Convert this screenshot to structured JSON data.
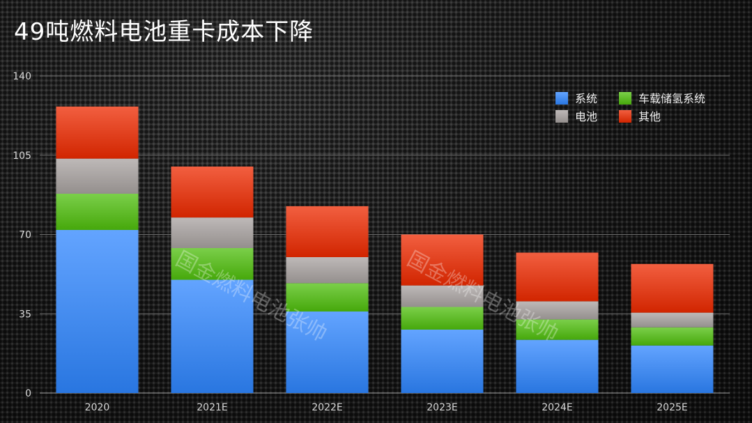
{
  "title": "49吨燃料电池重卡成本下降",
  "watermark": "国金燃料电池张帅",
  "chart_data": {
    "type": "bar",
    "stacked": true,
    "categories": [
      "2020",
      "2021E",
      "2022E",
      "2023E",
      "2024E",
      "2025E"
    ],
    "series": [
      {
        "name": "系统",
        "color": "#2f86ff",
        "values": [
          72,
          50,
          36,
          28,
          23.5,
          21
        ]
      },
      {
        "name": "车载储氢系统",
        "color": "#4fbf0d",
        "values": [
          16,
          14,
          12.5,
          10,
          9,
          8
        ]
      },
      {
        "name": "电池",
        "color": "#a8a2a0",
        "values": [
          15.5,
          13.5,
          11.5,
          9.5,
          8,
          6.5
        ]
      },
      {
        "name": "其他",
        "color": "#ee2a00",
        "values": [
          23,
          22.5,
          22.5,
          22.5,
          21.5,
          21.5
        ]
      }
    ],
    "ylim": [
      0,
      140
    ],
    "yticks": [
      0,
      35,
      70,
      105,
      140
    ],
    "grid": true,
    "legend_position": "top-right",
    "xlabel": "",
    "ylabel": ""
  }
}
